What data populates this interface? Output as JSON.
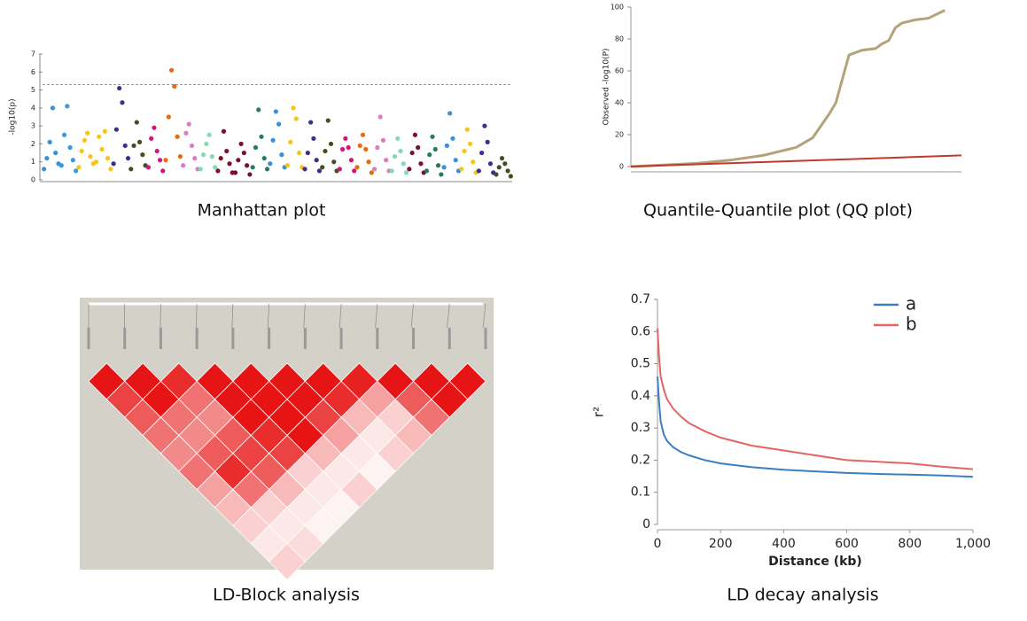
{
  "chart_data": [
    {
      "type": "manhattan",
      "caption": "Manhattan plot",
      "ylabel": "-log10(p)",
      "ylim": [
        0,
        7
      ],
      "yticks": [
        0,
        1,
        2,
        3,
        4,
        5,
        6,
        7
      ],
      "threshold": 5.3,
      "threshold_color": "#f07070",
      "series": [
        {
          "color": "#3a8fd6",
          "values": [
            0.6,
            1.2,
            2.1,
            4.0,
            1.5,
            0.9
          ]
        },
        {
          "color": "#3a9ad9",
          "values": [
            0.8,
            2.5,
            4.1,
            1.8,
            1.1,
            0.5
          ]
        },
        {
          "color": "#f5c518",
          "values": [
            0.7,
            1.6,
            2.2,
            2.6,
            1.3,
            0.9
          ]
        },
        {
          "color": "#f5c518",
          "values": [
            1.0,
            2.4,
            1.7,
            2.7,
            1.2,
            0.6
          ]
        },
        {
          "color": "#3d2f8a",
          "values": [
            0.9,
            2.8,
            5.1,
            4.3,
            1.9,
            1.2
          ]
        },
        {
          "color": "#434d1f",
          "values": [
            0.6,
            1.9,
            3.2,
            2.1,
            1.4,
            0.8
          ]
        },
        {
          "color": "#d6137a",
          "values": [
            0.7,
            2.3,
            2.9,
            1.6,
            1.1,
            0.5
          ]
        },
        {
          "color": "#e86a10",
          "values": [
            1.1,
            3.5,
            6.1,
            5.2,
            2.4,
            1.3
          ]
        },
        {
          "color": "#d67ec0",
          "values": [
            0.8,
            2.6,
            3.1,
            1.9,
            1.2,
            0.6
          ]
        },
        {
          "color": "#88d8b0",
          "values": [
            0.6,
            1.4,
            2.0,
            2.5,
            1.3,
            0.7
          ]
        },
        {
          "color": "#7a1030",
          "values": [
            0.5,
            1.2,
            2.7,
            1.6,
            0.9,
            0.4
          ]
        },
        {
          "color": "#7a1030",
          "values": [
            0.4,
            1.1,
            2.0,
            1.5,
            0.8,
            0.3
          ]
        },
        {
          "color": "#2a7a60",
          "values": [
            0.7,
            1.8,
            3.9,
            2.4,
            1.2,
            0.6
          ]
        },
        {
          "color": "#3a8fd6",
          "values": [
            0.9,
            2.2,
            3.8,
            3.1,
            1.4,
            0.7
          ]
        },
        {
          "color": "#f5c518",
          "values": [
            0.8,
            2.1,
            4.0,
            3.4,
            1.5,
            0.7
          ]
        },
        {
          "color": "#3d2f8a",
          "values": [
            0.6,
            1.5,
            3.2,
            2.3,
            1.1,
            0.5
          ]
        },
        {
          "color": "#434d1f",
          "values": [
            0.7,
            1.6,
            3.3,
            2.0,
            1.0,
            0.5
          ]
        },
        {
          "color": "#d6137a",
          "values": [
            0.6,
            1.7,
            2.3,
            1.8,
            1.1,
            0.5
          ]
        },
        {
          "color": "#e86a10",
          "values": [
            0.7,
            1.9,
            2.5,
            1.7,
            1.0,
            0.4
          ]
        },
        {
          "color": "#d67ec0",
          "values": [
            0.6,
            1.8,
            3.5,
            2.2,
            1.1,
            0.5
          ]
        },
        {
          "color": "#88d8b0",
          "values": [
            0.5,
            1.3,
            2.3,
            1.6,
            0.9,
            0.4
          ]
        },
        {
          "color": "#7a1030",
          "values": [
            0.6,
            1.5,
            2.5,
            1.8,
            0.9,
            0.4
          ]
        },
        {
          "color": "#2a7a60",
          "values": [
            0.5,
            1.4,
            2.4,
            1.7,
            0.8,
            0.3
          ]
        },
        {
          "color": "#3a8fd6",
          "values": [
            0.7,
            1.9,
            3.7,
            2.3,
            1.1,
            0.5
          ]
        },
        {
          "color": "#f5c518",
          "values": [
            0.6,
            1.6,
            2.8,
            2.0,
            1.0,
            0.4
          ]
        },
        {
          "color": "#3d2f8a",
          "values": [
            0.5,
            1.5,
            3.0,
            2.1,
            0.9,
            0.4
          ]
        },
        {
          "color": "#434d1f",
          "values": [
            0.3,
            0.7,
            1.2,
            0.9,
            0.5,
            0.2
          ]
        }
      ]
    },
    {
      "type": "line",
      "caption": "Quantile-Quantile plot (QQ plot)",
      "ylabel": "Observed -log10(P)",
      "xlim": [
        0,
        1
      ],
      "ylim": [
        0,
        100
      ],
      "yticks": [
        0,
        20,
        40,
        60,
        80,
        100
      ],
      "series": [
        {
          "color": "#b5a27a",
          "x": [
            0,
            0.1,
            0.2,
            0.3,
            0.4,
            0.5,
            0.55,
            0.58,
            0.6,
            0.62,
            0.64,
            0.66,
            0.7,
            0.74,
            0.76,
            0.78,
            0.8,
            0.82,
            0.86,
            0.9,
            0.95
          ],
          "values": [
            0,
            1,
            2,
            4,
            7,
            12,
            18,
            27,
            33,
            40,
            55,
            70,
            73,
            74,
            77,
            79,
            87,
            90,
            92,
            93,
            98
          ]
        },
        {
          "color": "#c0392b",
          "x": [
            0,
            1
          ],
          "values": [
            0,
            7
          ]
        }
      ]
    },
    {
      "type": "heatmap",
      "caption": "LD-Block analysis",
      "values": [
        [
          100,
          100,
          90,
          100,
          100,
          100,
          100,
          95,
          100,
          100,
          100
        ],
        [
          80,
          100,
          60,
          100,
          100,
          100,
          90,
          40,
          70,
          100
        ],
        [
          70,
          60,
          50,
          100,
          100,
          80,
          30,
          20,
          60
        ],
        [
          60,
          50,
          70,
          90,
          100,
          40,
          10,
          30
        ],
        [
          50,
          70,
          80,
          80,
          30,
          10,
          20
        ],
        [
          60,
          90,
          70,
          20,
          10,
          5
        ],
        [
          40,
          60,
          30,
          10,
          20
        ],
        [
          30,
          20,
          10,
          5
        ],
        [
          20,
          10,
          5
        ],
        [
          10,
          15
        ],
        [
          20
        ]
      ]
    },
    {
      "type": "line",
      "caption": "LD decay analysis",
      "xlabel": "Distance (kb)",
      "ylabel": "r²",
      "legend": "top-right",
      "xlim": [
        0,
        1000
      ],
      "xticks": [
        0,
        200,
        400,
        600,
        800,
        {
          "value": 1000,
          "label": "1,000"
        }
      ],
      "ylim": [
        0,
        0.7
      ],
      "yticks": [
        0,
        0.1,
        0.2,
        0.3,
        0.4,
        0.5,
        0.6,
        0.7
      ],
      "series": [
        {
          "name": "a",
          "color": "#3a7fc1",
          "x": [
            0,
            5,
            10,
            20,
            30,
            50,
            75,
            100,
            150,
            200,
            300,
            400,
            500,
            600,
            700,
            800,
            900,
            1000
          ],
          "values": [
            0.46,
            0.38,
            0.32,
            0.28,
            0.26,
            0.24,
            0.225,
            0.215,
            0.2,
            0.19,
            0.178,
            0.17,
            0.165,
            0.16,
            0.157,
            0.155,
            0.152,
            0.148
          ]
        },
        {
          "name": "b",
          "color": "#e36464",
          "x": [
            0,
            5,
            10,
            20,
            30,
            50,
            75,
            100,
            150,
            200,
            300,
            400,
            500,
            600,
            700,
            800,
            900,
            1000
          ],
          "values": [
            0.61,
            0.52,
            0.46,
            0.42,
            0.39,
            0.36,
            0.335,
            0.315,
            0.29,
            0.27,
            0.245,
            0.23,
            0.215,
            0.2,
            0.195,
            0.19,
            0.18,
            0.172
          ]
        }
      ]
    }
  ]
}
